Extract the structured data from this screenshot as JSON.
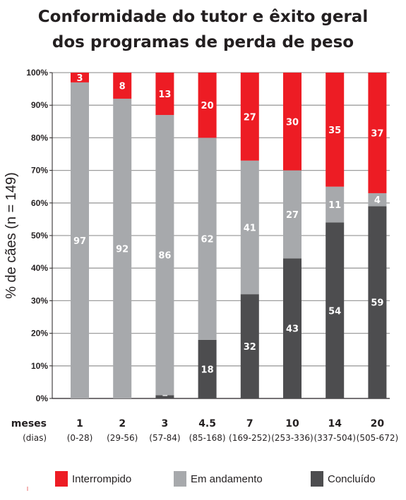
{
  "title_lines": [
    "Conformidade do tutor e êxito geral",
    "dos programas de perda de peso"
  ],
  "colors": {
    "interrompido": "#ed1c24",
    "em_andamento": "#a7a9ac",
    "concluido": "#4d4d4f",
    "grid": "#9e9e9e",
    "axis": "#231f20"
  },
  "chart_data": {
    "type": "bar",
    "stacked": true,
    "ylabel": "% de cães (n = 149)",
    "ylim": [
      0,
      100
    ],
    "yticks": [
      "0%",
      "10%",
      "20%",
      "30%",
      "40%",
      "50%",
      "60%",
      "70%",
      "80%",
      "90%",
      "100%"
    ],
    "grid": true,
    "x_row_labels": [
      "meses",
      "(dias)"
    ],
    "categories": [
      "1",
      "2",
      "3",
      "4.5",
      "7",
      "10",
      "14",
      "20"
    ],
    "categories_days": [
      "(0-28)",
      "(29-56)",
      "(57-84)",
      "(85-168)",
      "(169-252)",
      "(253-336)",
      "(337-504)",
      "(505-672)"
    ],
    "series": [
      {
        "name": "Concluído",
        "key": "concluido",
        "values": [
          0,
          0,
          1,
          18,
          32,
          43,
          54,
          59
        ],
        "labels": [
          "",
          "",
          "1",
          "18",
          "32",
          "43",
          "54",
          "59"
        ]
      },
      {
        "name": "Em andamento",
        "key": "em_andamento",
        "values": [
          97,
          92,
          86,
          62,
          41,
          27,
          11,
          4
        ],
        "labels": [
          "97",
          "92",
          "86",
          "62",
          "41",
          "27",
          "11",
          "4"
        ]
      },
      {
        "name": "Interrompido",
        "key": "interrompido",
        "values": [
          3,
          8,
          13,
          20,
          27,
          30,
          35,
          37
        ],
        "labels": [
          "3",
          "8",
          "13",
          "20",
          "27",
          "30",
          "35",
          "37"
        ]
      }
    ],
    "legend_position": "bottom"
  },
  "legend": [
    {
      "label": "Interrompido",
      "key": "interrompido"
    },
    {
      "label": "Em andamento",
      "key": "em_andamento"
    },
    {
      "label": "Concluído",
      "key": "concluido"
    }
  ]
}
